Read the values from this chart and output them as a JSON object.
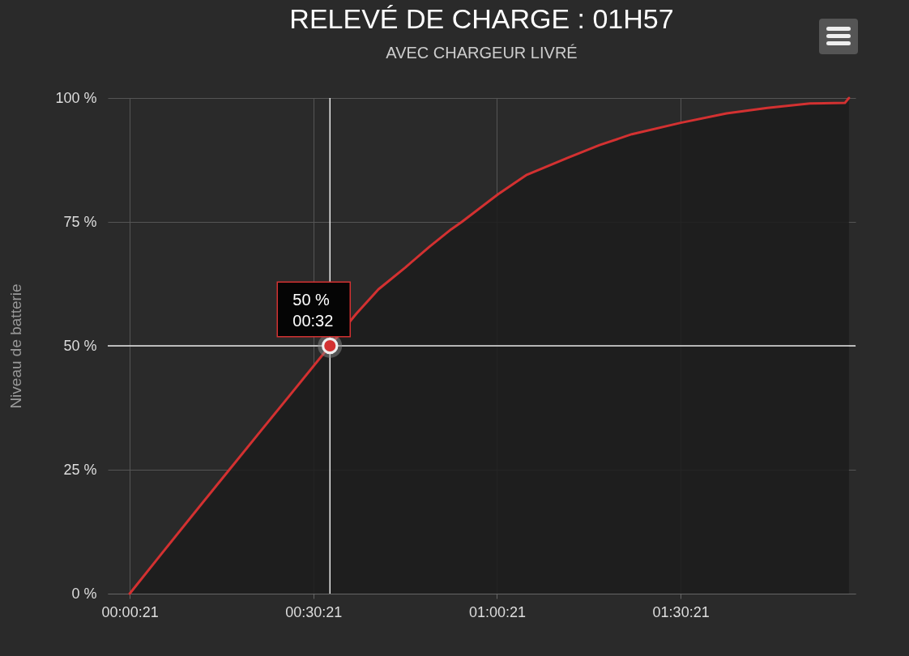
{
  "chart_data": {
    "type": "area",
    "title": "RELEVÉ DE CHARGE : 01H57",
    "subtitle": "AVEC CHARGEUR LIVRÉ",
    "ylabel": "Niveau de batterie",
    "x": [
      0.0058,
      0.094,
      0.182,
      0.277,
      0.359,
      0.447,
      0.551,
      0.623,
      0.683,
      0.756,
      0.822,
      0.881,
      0.91,
      1.009,
      1.087,
      1.197,
      1.285,
      1.373,
      1.506,
      1.631,
      1.742,
      1.858,
      1.953,
      1.964
    ],
    "series": [
      {
        "color": "#d33131",
        "values": [
          0,
          8.2,
          16.3,
          25,
          32.5,
          40.5,
          50,
          56.5,
          61.4,
          65.8,
          70,
          73.5,
          75,
          80.6,
          84.5,
          87.9,
          90.5,
          92.7,
          95,
          96.9,
          98,
          98.9,
          99,
          100
        ]
      }
    ],
    "xlim": [
      -0.054,
      1.982
    ],
    "xticks": [
      {
        "value": 0.00583,
        "label": "00:00:21"
      },
      {
        "value": 0.50583,
        "label": "00:30:21"
      },
      {
        "value": 1.00583,
        "label": "01:00:21"
      },
      {
        "value": 1.50583,
        "label": "01:30:21"
      }
    ],
    "ylim": [
      0,
      100
    ],
    "yticks": [
      {
        "value": 0,
        "label": "0 %"
      },
      {
        "value": 25,
        "label": "25 %"
      },
      {
        "value": 50,
        "label": "50 %"
      },
      {
        "value": 75,
        "label": "75 %"
      },
      {
        "value": 100,
        "label": "100 %"
      }
    ],
    "grid": true,
    "ref_lines": [
      {
        "axis": "x",
        "value": 0.551,
        "color": "#e8e8e8"
      },
      {
        "axis": "y",
        "value": 50,
        "color": "#e8e8e8"
      }
    ],
    "annotations": [
      {
        "text": "50 %\n00:32",
        "x": 0.551,
        "y": 50
      }
    ]
  }
}
